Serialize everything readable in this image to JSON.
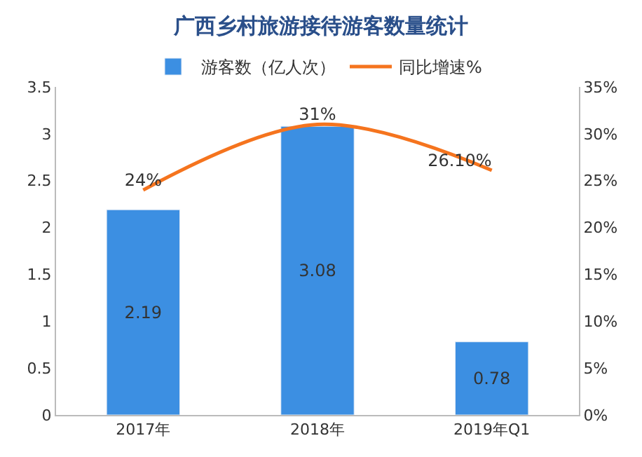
{
  "chart_data": {
    "type": "bar",
    "title": "广西乡村旅游接待游客数量统计",
    "categories": [
      "2017年",
      "2018年",
      "2019年Q1"
    ],
    "series": [
      {
        "name": "游客数（亿人次）",
        "color": "#3c8fe2",
        "values": [
          2.19,
          3.08,
          0.78
        ],
        "value_labels": [
          "2.19",
          "3.08",
          "0.78"
        ]
      },
      {
        "name": "同比增速%",
        "type": "line",
        "axis": "y2",
        "color": "#f5741e",
        "values": [
          24,
          31,
          26.1
        ],
        "value_labels": [
          "24%",
          "31%",
          "26.10%"
        ]
      }
    ],
    "ylim": [
      0,
      3.5
    ],
    "yticks": [
      0,
      {
        "value": 0.5,
        "label": "0.5"
      },
      1,
      {
        "value": 1.5,
        "label": "1.5"
      },
      2,
      {
        "value": 2.5,
        "label": "2.5"
      },
      3,
      {
        "value": 3.5,
        "label": "3.5"
      }
    ],
    "y2lim": [
      0,
      35
    ],
    "y2ticks": [
      {
        "value": 0,
        "label": "0%"
      },
      {
        "value": 5,
        "label": "5%"
      },
      {
        "value": 10,
        "label": "10%"
      },
      {
        "value": 15,
        "label": "15%"
      },
      {
        "value": 20,
        "label": "20%"
      },
      {
        "value": 25,
        "label": "25%"
      },
      {
        "value": 30,
        "label": "30%"
      },
      {
        "value": 35,
        "label": "35%"
      }
    ],
    "legend": "top"
  }
}
